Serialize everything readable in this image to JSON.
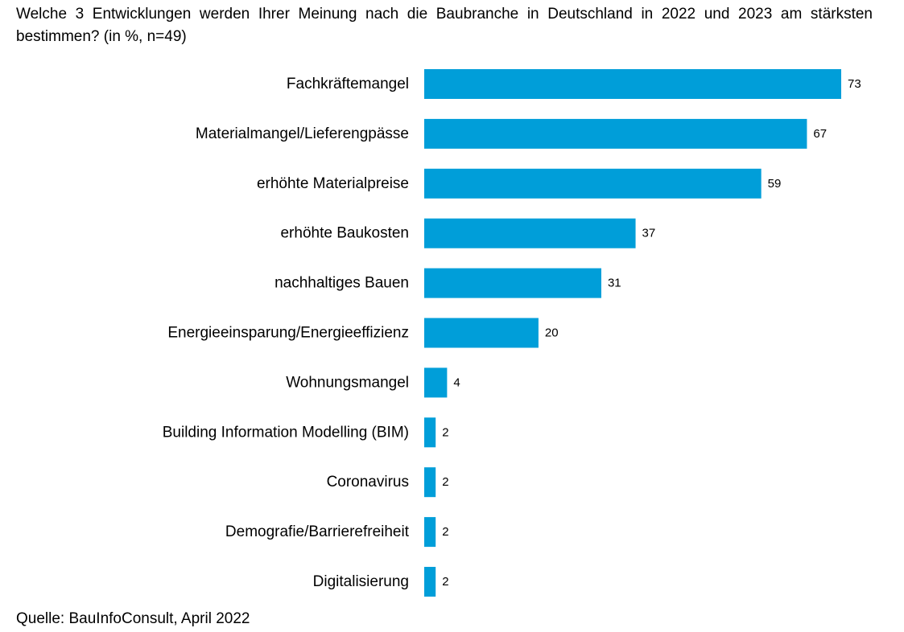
{
  "chart_data": {
    "type": "bar",
    "orientation": "horizontal",
    "title": "Welche 3 Entwicklungen werden Ihrer Meinung nach die Baubranche in Deutschland in 2022 und 2023 am stärksten bestimmen? (in %, n=49)",
    "categories": [
      "Fachkräftemangel",
      "Materialmangel/Lieferengpässe",
      "erhöhte Materialpreise",
      "erhöhte Baukosten",
      "nachhaltiges Bauen",
      "Energieeinsparung/Energieeffizienz",
      "Wohnungsmangel",
      "Building Information Modelling (BIM)",
      "Coronavirus",
      "Demografie/Barrierefreiheit",
      "Digitalisierung"
    ],
    "values": [
      73,
      67,
      59,
      37,
      31,
      20,
      4,
      2,
      2,
      2,
      2
    ],
    "xlim": [
      0,
      73
    ],
    "grid": false,
    "bar_color": "#009ed9",
    "source": "Quelle: BauInfoConsult, April 2022"
  }
}
